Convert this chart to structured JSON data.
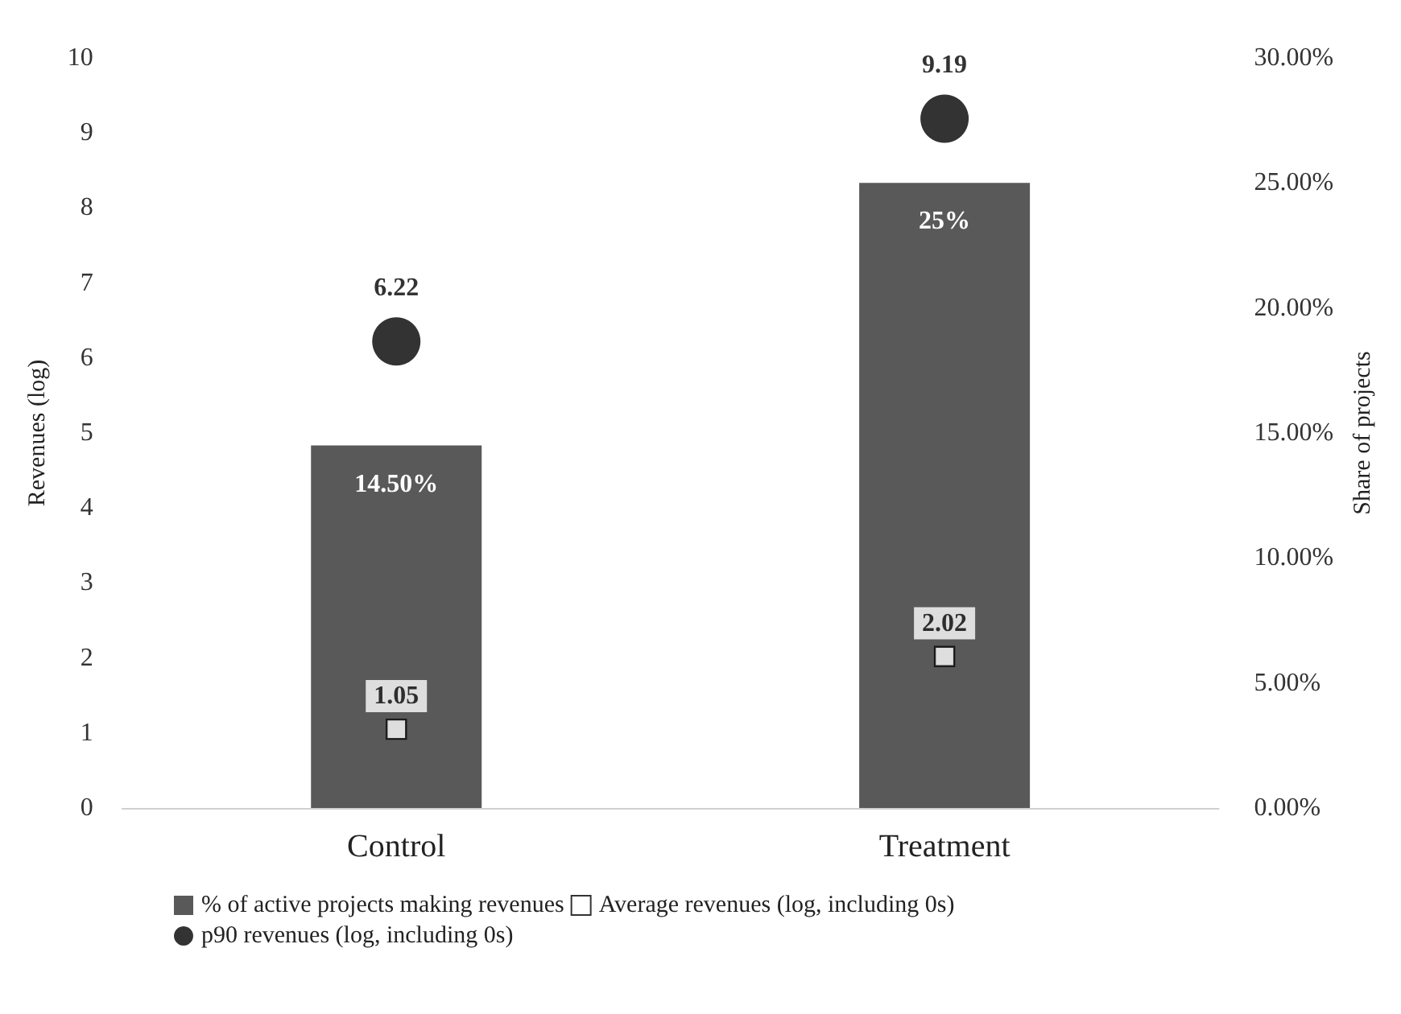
{
  "chart_data": {
    "type": "bar",
    "categories": [
      "Control",
      "Treatment"
    ],
    "ylabel": "Revenues (log)",
    "y2label": "Share of projects",
    "ylim": [
      0,
      10
    ],
    "yticks": [
      0,
      1,
      2,
      3,
      4,
      5,
      6,
      7,
      8,
      9,
      10
    ],
    "y2lim": [
      0,
      30
    ],
    "y2ticks": [
      {
        "value": 0,
        "label": "0.00%"
      },
      {
        "value": 5,
        "label": "5.00%"
      },
      {
        "value": 10,
        "label": "10.00%"
      },
      {
        "value": 15,
        "label": "15.00%"
      },
      {
        "value": 20,
        "label": "20.00%"
      },
      {
        "value": 25,
        "label": "25.00%"
      },
      {
        "value": 30,
        "label": "30.00%"
      }
    ],
    "series": [
      {
        "name": "% of active projects making revenues",
        "axis": "y2",
        "color": "#595959",
        "values": [
          14.5,
          25
        ],
        "value_labels": [
          "14.50%",
          "25%"
        ]
      },
      {
        "name": "Average revenues (log, including 0s)",
        "type": "scatter",
        "marker": "square",
        "color": "#ffffff",
        "values": [
          1.05,
          2.02
        ],
        "value_labels": [
          "1.05",
          "2.02"
        ]
      },
      {
        "name": "p90 revenues (log, including 0s)",
        "type": "scatter",
        "marker": "circle",
        "color": "#000000",
        "values": [
          6.22,
          9.19
        ],
        "value_labels": [
          "6.22",
          "9.19"
        ]
      }
    ],
    "grid": false,
    "legend": "bottom"
  }
}
